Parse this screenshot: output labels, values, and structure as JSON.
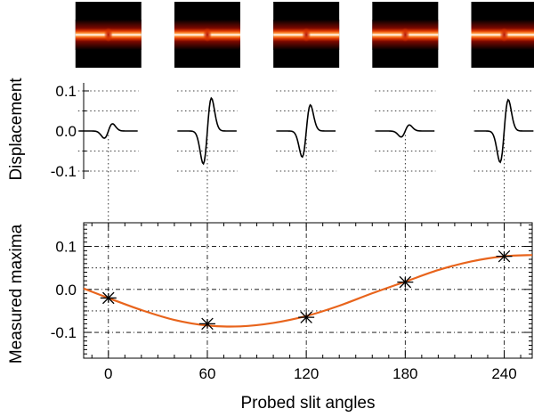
{
  "figure": {
    "top_ylabel": "Displacement",
    "bottom_ylabel": "Measured maxima",
    "xlabel": "Probed slit angles"
  },
  "colors": {
    "fit_curve": "#e8641c",
    "axis": "#000000",
    "image_background": "#000000",
    "image_band_edge": "#c81400",
    "image_band_core": "#ffffff"
  },
  "chart_data": [
    {
      "type": "image",
      "description_role": "slit image thumbnails",
      "panels": [
        {
          "angle": 0
        },
        {
          "angle": 60
        },
        {
          "angle": 120
        },
        {
          "angle": 180
        },
        {
          "angle": 240
        }
      ]
    },
    {
      "type": "line",
      "title": "",
      "ylabel": "Displacement",
      "ylim": [
        -0.12,
        0.12
      ],
      "yticks": [
        0.1,
        0.0,
        -0.1
      ],
      "ytick_labels": [
        "0.1",
        "0.0",
        "-0.1"
      ],
      "grid_levels": [
        0.1,
        0.05,
        -0.05,
        -0.1
      ],
      "series": [
        {
          "name": "profile at 0",
          "angle": 0,
          "amplitude": 0.018
        },
        {
          "name": "profile at 60",
          "angle": 60,
          "amplitude": 0.082
        },
        {
          "name": "profile at 120",
          "angle": 120,
          "amplitude": 0.065
        },
        {
          "name": "profile at 180",
          "angle": 180,
          "amplitude": 0.015
        },
        {
          "name": "profile at 240",
          "angle": 240,
          "amplitude": 0.078
        }
      ]
    },
    {
      "type": "scatter",
      "title": "",
      "xlabel": "Probed slit angles",
      "ylabel": "Measured maxima",
      "xlim": [
        -15,
        257
      ],
      "ylim": [
        -0.16,
        0.155
      ],
      "xticks": [
        0,
        60,
        120,
        180,
        240
      ],
      "xtick_labels": [
        "0",
        "60",
        "120",
        "180",
        "240"
      ],
      "yticks": [
        0.1,
        0.0,
        -0.1
      ],
      "ytick_labels": [
        "0.1",
        "0.0",
        "-0.1"
      ],
      "grid_levels": [
        0.1,
        0.05,
        0.0,
        -0.05,
        -0.1
      ],
      "points": {
        "x": [
          0,
          60,
          120,
          180,
          240
        ],
        "y": [
          -0.02,
          -0.08,
          -0.065,
          0.017,
          0.077
        ]
      },
      "fit": {
        "name": "sinusoidal fit",
        "x": [
          -15,
          0,
          20,
          40,
          60,
          80,
          100,
          120,
          140,
          160,
          180,
          200,
          220,
          240,
          257
        ],
        "y": [
          0.002,
          -0.02,
          -0.048,
          -0.071,
          -0.084,
          -0.086,
          -0.078,
          -0.062,
          -0.038,
          -0.009,
          0.018,
          0.045,
          0.065,
          0.077,
          0.08
        ]
      }
    }
  ]
}
